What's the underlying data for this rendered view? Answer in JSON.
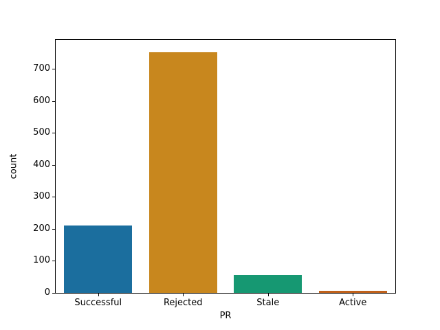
{
  "figure": {
    "background": "#ffffff"
  },
  "chart_data": {
    "type": "bar",
    "title": "",
    "xlabel": "PR",
    "ylabel": "count",
    "categories": [
      "Successful",
      "Rejected",
      "Stale",
      "Active"
    ],
    "values": [
      211,
      752,
      55,
      7
    ],
    "bar_colors": [
      "#1b6e9e",
      "#c8871e",
      "#169872",
      "#bf601a"
    ],
    "yticks": [
      0,
      100,
      200,
      300,
      400,
      500,
      600,
      700
    ],
    "ylim": [
      0,
      790
    ],
    "bar_width_fraction": 0.8,
    "grid": false,
    "legend": "none"
  }
}
